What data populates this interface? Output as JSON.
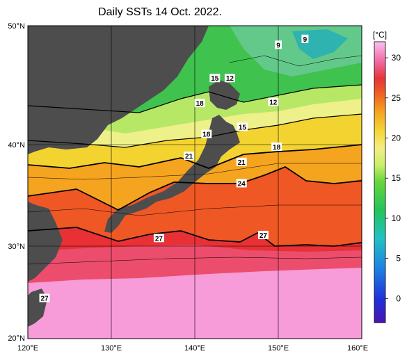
{
  "title": "Daily SSTs 14 Oct. 2022.",
  "lat_ticks": [
    "50°N",
    "40°N",
    "30°N",
    "20°N"
  ],
  "lon_ticks": [
    "120°E",
    "130°E",
    "140°E",
    "150°E",
    "160°E"
  ],
  "colorbar": {
    "unit": "[°C]",
    "ticks": [
      "30",
      "25",
      "20",
      "15",
      "10",
      "5",
      "0"
    ],
    "range": [
      -3,
      32
    ]
  },
  "isotherm_labels": [
    {
      "text": "9",
      "lon": 150.0,
      "lat": 48.4
    },
    {
      "text": "9",
      "lon": 153.2,
      "lat": 48.9
    },
    {
      "text": "15",
      "lon": 142.4,
      "lat": 45.6
    },
    {
      "text": "12",
      "lon": 144.2,
      "lat": 45.6
    },
    {
      "text": "12",
      "lon": 149.4,
      "lat": 43.6
    },
    {
      "text": "18",
      "lon": 140.6,
      "lat": 43.5
    },
    {
      "text": "15",
      "lon": 145.7,
      "lat": 41.5
    },
    {
      "text": "18",
      "lon": 141.4,
      "lat": 40.9
    },
    {
      "text": "18",
      "lon": 149.8,
      "lat": 39.8
    },
    {
      "text": "21",
      "lon": 139.3,
      "lat": 38.9
    },
    {
      "text": "21",
      "lon": 145.6,
      "lat": 38.3
    },
    {
      "text": "24",
      "lon": 145.6,
      "lat": 36.2
    },
    {
      "text": "27",
      "lon": 135.7,
      "lat": 30.8
    },
    {
      "text": "27",
      "lon": 148.2,
      "lat": 31.1
    },
    {
      "text": "27",
      "lon": 122.0,
      "lat": 24.4
    }
  ],
  "colors": {
    "land": "#4d4d4d",
    "bands": [
      "#5b1fa8",
      "#1e35d6",
      "#1b8ee0",
      "#1ec8c8",
      "#22c55e",
      "#5ed63b",
      "#b8ea5c",
      "#e9f39a",
      "#f3e65a",
      "#f5c823",
      "#f39a1e",
      "#ef5a25",
      "#e8313a",
      "#ef5d8e",
      "#f596d6",
      "#f8b6ef"
    ]
  }
}
